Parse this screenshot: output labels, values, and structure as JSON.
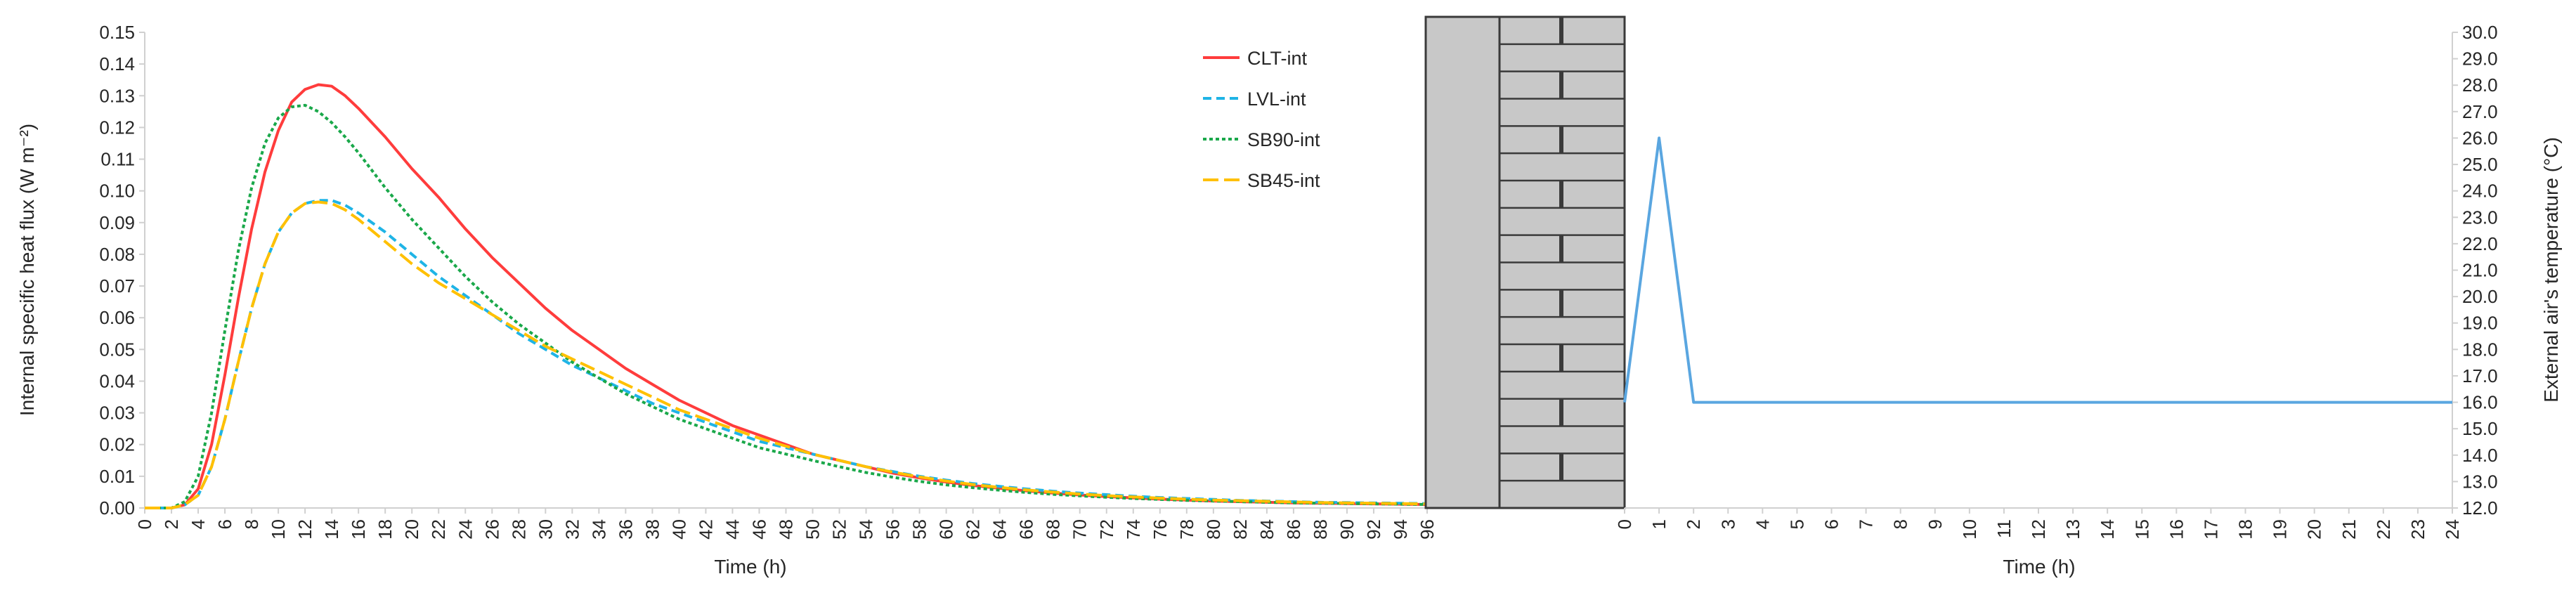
{
  "chart_data": [
    {
      "type": "line",
      "xlabel": "Time (h)",
      "ylabel": "Internal specific heat flux (W m⁻²)",
      "xlim": [
        0,
        96
      ],
      "ylim": [
        0,
        0.15
      ],
      "x_ticks": [
        "0",
        "2",
        "4",
        "6",
        "8",
        "10",
        "12",
        "14",
        "16",
        "18",
        "20",
        "22",
        "24",
        "26",
        "28",
        "30",
        "32",
        "34",
        "36",
        "38",
        "40",
        "42",
        "44",
        "46",
        "48",
        "50",
        "52",
        "54",
        "56",
        "58",
        "60",
        "62",
        "64",
        "66",
        "68",
        "70",
        "72",
        "74",
        "76",
        "78",
        "80",
        "82",
        "84",
        "86",
        "88",
        "90",
        "92",
        "94",
        "96"
      ],
      "y_ticks": [
        "0.00",
        "0.01",
        "0.02",
        "0.03",
        "0.04",
        "0.05",
        "0.06",
        "0.07",
        "0.08",
        "0.09",
        "0.10",
        "0.11",
        "0.12",
        "0.13",
        "0.14",
        "0.15"
      ],
      "legend_position": "top-right",
      "x": [
        0,
        2,
        3,
        4,
        5,
        6,
        7,
        8,
        9,
        10,
        11,
        12,
        13,
        14,
        15,
        16,
        18,
        20,
        22,
        24,
        26,
        28,
        30,
        32,
        34,
        36,
        38,
        40,
        42,
        44,
        46,
        48,
        50,
        52,
        54,
        56,
        58,
        60,
        62,
        64,
        66,
        68,
        70,
        72,
        74,
        76,
        78,
        80,
        82,
        84,
        86,
        88,
        90,
        92,
        94,
        96
      ],
      "series": [
        {
          "name": "CLT-int",
          "color": "#ff3c3c",
          "dash": "solid",
          "values": [
            0,
            0,
            0.001,
            0.006,
            0.02,
            0.042,
            0.066,
            0.088,
            0.106,
            0.119,
            0.128,
            0.132,
            0.1335,
            0.133,
            0.13,
            0.126,
            0.117,
            0.107,
            0.098,
            0.088,
            0.079,
            0.071,
            0.063,
            0.056,
            0.05,
            0.044,
            0.039,
            0.034,
            0.03,
            0.026,
            0.023,
            0.02,
            0.017,
            0.015,
            0.013,
            0.011,
            0.0095,
            0.0082,
            0.0071,
            0.0062,
            0.0054,
            0.0047,
            0.0041,
            0.0036,
            0.0032,
            0.0028,
            0.0025,
            0.0022,
            0.002,
            0.0018,
            0.0016,
            0.0015,
            0.0014,
            0.0013,
            0.0012,
            0.0011
          ]
        },
        {
          "name": "LVL-int",
          "color": "#1fb4e6",
          "dash": "dashed",
          "values": [
            0,
            0,
            0.001,
            0.004,
            0.013,
            0.028,
            0.046,
            0.063,
            0.077,
            0.087,
            0.093,
            0.096,
            0.097,
            0.097,
            0.0955,
            0.093,
            0.087,
            0.08,
            0.073,
            0.067,
            0.061,
            0.055,
            0.05,
            0.045,
            0.041,
            0.037,
            0.033,
            0.03,
            0.027,
            0.024,
            0.021,
            0.019,
            0.017,
            0.015,
            0.013,
            0.0115,
            0.01,
            0.0088,
            0.0077,
            0.0068,
            0.006,
            0.0053,
            0.0047,
            0.0042,
            0.0037,
            0.0033,
            0.003,
            0.0027,
            0.0024,
            0.0022,
            0.002,
            0.0018,
            0.0017,
            0.0016,
            0.0015,
            0.0014
          ]
        },
        {
          "name": "SB90-int",
          "color": "#1aa84a",
          "dash": "dotted",
          "values": [
            0,
            0,
            0.002,
            0.01,
            0.03,
            0.056,
            0.081,
            0.101,
            0.115,
            0.123,
            0.1265,
            0.127,
            0.125,
            0.1215,
            0.117,
            0.112,
            0.101,
            0.091,
            0.082,
            0.073,
            0.065,
            0.058,
            0.052,
            0.046,
            0.041,
            0.036,
            0.032,
            0.028,
            0.025,
            0.022,
            0.019,
            0.017,
            0.015,
            0.013,
            0.0112,
            0.0097,
            0.0084,
            0.0073,
            0.0064,
            0.0056,
            0.0049,
            0.0043,
            0.0038,
            0.0034,
            0.003,
            0.0027,
            0.0024,
            0.0022,
            0.002,
            0.0018,
            0.0016,
            0.0015,
            0.0014,
            0.0013,
            0.0012,
            0.0011
          ]
        },
        {
          "name": "SB45-int",
          "color": "#ffc000",
          "dash": "long-dash",
          "values": [
            0,
            0,
            0.001,
            0.004,
            0.013,
            0.028,
            0.046,
            0.063,
            0.077,
            0.087,
            0.093,
            0.096,
            0.0965,
            0.096,
            0.094,
            0.091,
            0.084,
            0.077,
            0.071,
            0.066,
            0.061,
            0.056,
            0.051,
            0.047,
            0.043,
            0.039,
            0.035,
            0.031,
            0.028,
            0.025,
            0.022,
            0.0195,
            0.017,
            0.015,
            0.013,
            0.0113,
            0.0098,
            0.0085,
            0.0074,
            0.0065,
            0.0057,
            0.005,
            0.0044,
            0.0039,
            0.0035,
            0.0031,
            0.0028,
            0.0025,
            0.0023,
            0.0021,
            0.0019,
            0.0017,
            0.0016,
            0.0015,
            0.0014,
            0.0013
          ]
        }
      ]
    },
    {
      "type": "line",
      "xlabel": "Time (h)",
      "ylabel": "External air's temperature (°C)",
      "xlim": [
        0,
        24
      ],
      "ylim": [
        12,
        30
      ],
      "x_ticks": [
        "0",
        "1",
        "2",
        "3",
        "4",
        "5",
        "6",
        "7",
        "8",
        "9",
        "10",
        "11",
        "12",
        "13",
        "14",
        "15",
        "16",
        "17",
        "18",
        "19",
        "20",
        "21",
        "22",
        "23",
        "24"
      ],
      "y_ticks": [
        "12.0",
        "13.0",
        "14.0",
        "15.0",
        "16.0",
        "17.0",
        "18.0",
        "19.0",
        "20.0",
        "21.0",
        "22.0",
        "23.0",
        "24.0",
        "25.0",
        "26.0",
        "27.0",
        "28.0",
        "29.0",
        "30.0"
      ],
      "x": [
        0,
        1,
        2,
        24
      ],
      "series": [
        {
          "color": "#5aa6e0",
          "values": [
            16.0,
            26.0,
            16.0,
            16.0
          ]
        }
      ]
    }
  ]
}
